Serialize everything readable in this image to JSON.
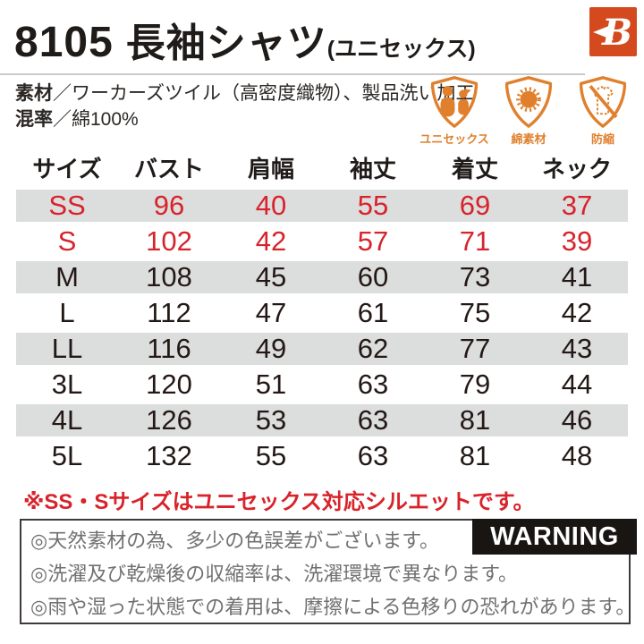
{
  "header": {
    "product_code": "8105",
    "product_name": "長袖シャツ",
    "product_suffix": "(ユニセックス)",
    "brand_letter": "B"
  },
  "specs": {
    "material_label": "素材",
    "material_value": "／ワーカーズツイル（高密度織物）、製品洗い加工",
    "blend_label": "混率",
    "blend_value": "／綿100%"
  },
  "feature_icons": [
    {
      "name": "unisex-shield-icon",
      "label": "ユニセックス"
    },
    {
      "name": "cotton-shield-icon",
      "label": "綿素材"
    },
    {
      "name": "shrink-proof-shield-icon",
      "label": "防縮"
    }
  ],
  "size_table": {
    "columns": [
      "サイズ",
      "バスト",
      "肩幅",
      "袖丈",
      "着丈",
      "ネック"
    ],
    "rows": [
      {
        "size": "SS",
        "values": [
          "96",
          "40",
          "55",
          "69",
          "37"
        ],
        "highlight_red": true
      },
      {
        "size": "S",
        "values": [
          "102",
          "42",
          "57",
          "71",
          "39"
        ],
        "highlight_red": true
      },
      {
        "size": "M",
        "values": [
          "108",
          "45",
          "60",
          "73",
          "41"
        ],
        "highlight_red": false
      },
      {
        "size": "L",
        "values": [
          "112",
          "47",
          "61",
          "75",
          "42"
        ],
        "highlight_red": false
      },
      {
        "size": "LL",
        "values": [
          "116",
          "49",
          "62",
          "77",
          "43"
        ],
        "highlight_red": false
      },
      {
        "size": "3L",
        "values": [
          "120",
          "51",
          "63",
          "79",
          "44"
        ],
        "highlight_red": false
      },
      {
        "size": "4L",
        "values": [
          "126",
          "53",
          "63",
          "81",
          "46"
        ],
        "highlight_red": false
      },
      {
        "size": "5L",
        "values": [
          "132",
          "55",
          "63",
          "81",
          "48"
        ],
        "highlight_red": false
      }
    ]
  },
  "note": "※SS・Sサイズはユニセックス対応シルエットです。",
  "warning": {
    "badge": "WARNING",
    "items": [
      "◎天然素材の為、多少の色誤差がございます。",
      "◎洗濯及び乾燥後の収縮率は、洗濯環境で異なります。",
      "◎雨や湿った状態での着用は、摩擦による色移りの恐れがあります。"
    ]
  },
  "colors": {
    "accent_orange": "#e0802d",
    "logo_red": "#d44a1e",
    "highlight_red": "#d7232b",
    "row_gray": "#dcdddd",
    "text_dark": "#231815",
    "warning_gray": "#717071"
  }
}
